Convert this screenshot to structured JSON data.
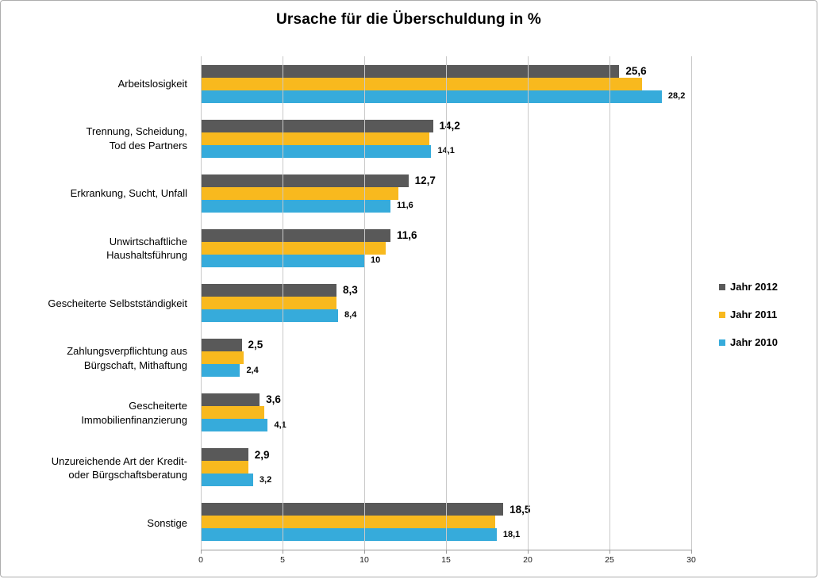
{
  "chart_data": {
    "type": "bar",
    "orientation": "horizontal",
    "title": "Ursache für die Überschuldung in %",
    "xlabel": "",
    "ylabel": "",
    "xlim": [
      0,
      30
    ],
    "xticks": [
      0,
      5,
      10,
      15,
      20,
      25,
      30
    ],
    "grid": "vertical-only",
    "legend_position": "right-middle",
    "categories": [
      "Arbeitslosigkeit",
      "Trennung, Scheidung,\nTod des Partners",
      "Erkrankung, Sucht, Unfall",
      "Unwirtschaftliche\nHaushaltsführung",
      "Gescheiterte Selbstständigkeit",
      "Zahlungsverpflichtung aus\nBürgschaft, Mithaftung",
      "Gescheiterte\nImmobilienfinanzierung",
      "Unzureichende Art der Kredit-\noder Bürgschaftsberatung",
      "Sonstige"
    ],
    "series": [
      {
        "name": "Jahr 2012",
        "color": "#595959",
        "values": [
          25.6,
          14.2,
          12.7,
          11.6,
          8.3,
          2.5,
          3.6,
          2.9,
          18.5
        ],
        "labels": [
          "25,6",
          "14,2",
          "12,7",
          "11,6",
          "8,3",
          "2,5",
          "3,6",
          "2,9",
          "18,5"
        ],
        "label_style": "big"
      },
      {
        "name": "Jahr 2011",
        "color": "#F8B91E",
        "values": [
          27.0,
          14.0,
          12.1,
          11.3,
          8.3,
          2.6,
          3.9,
          2.9,
          18.0
        ],
        "labels": [
          "",
          "",
          "",
          "",
          "",
          "",
          "",
          "",
          ""
        ],
        "label_style": "none"
      },
      {
        "name": "Jahr 2010",
        "color": "#36ABDB",
        "values": [
          28.2,
          14.1,
          11.6,
          10,
          8.4,
          2.4,
          4.1,
          3.2,
          18.1
        ],
        "labels": [
          "28,2",
          "14,1",
          "11,6",
          "10",
          "8,4",
          "2,4",
          "4,1",
          "3,2",
          "18,1"
        ],
        "label_style": "small"
      }
    ]
  }
}
